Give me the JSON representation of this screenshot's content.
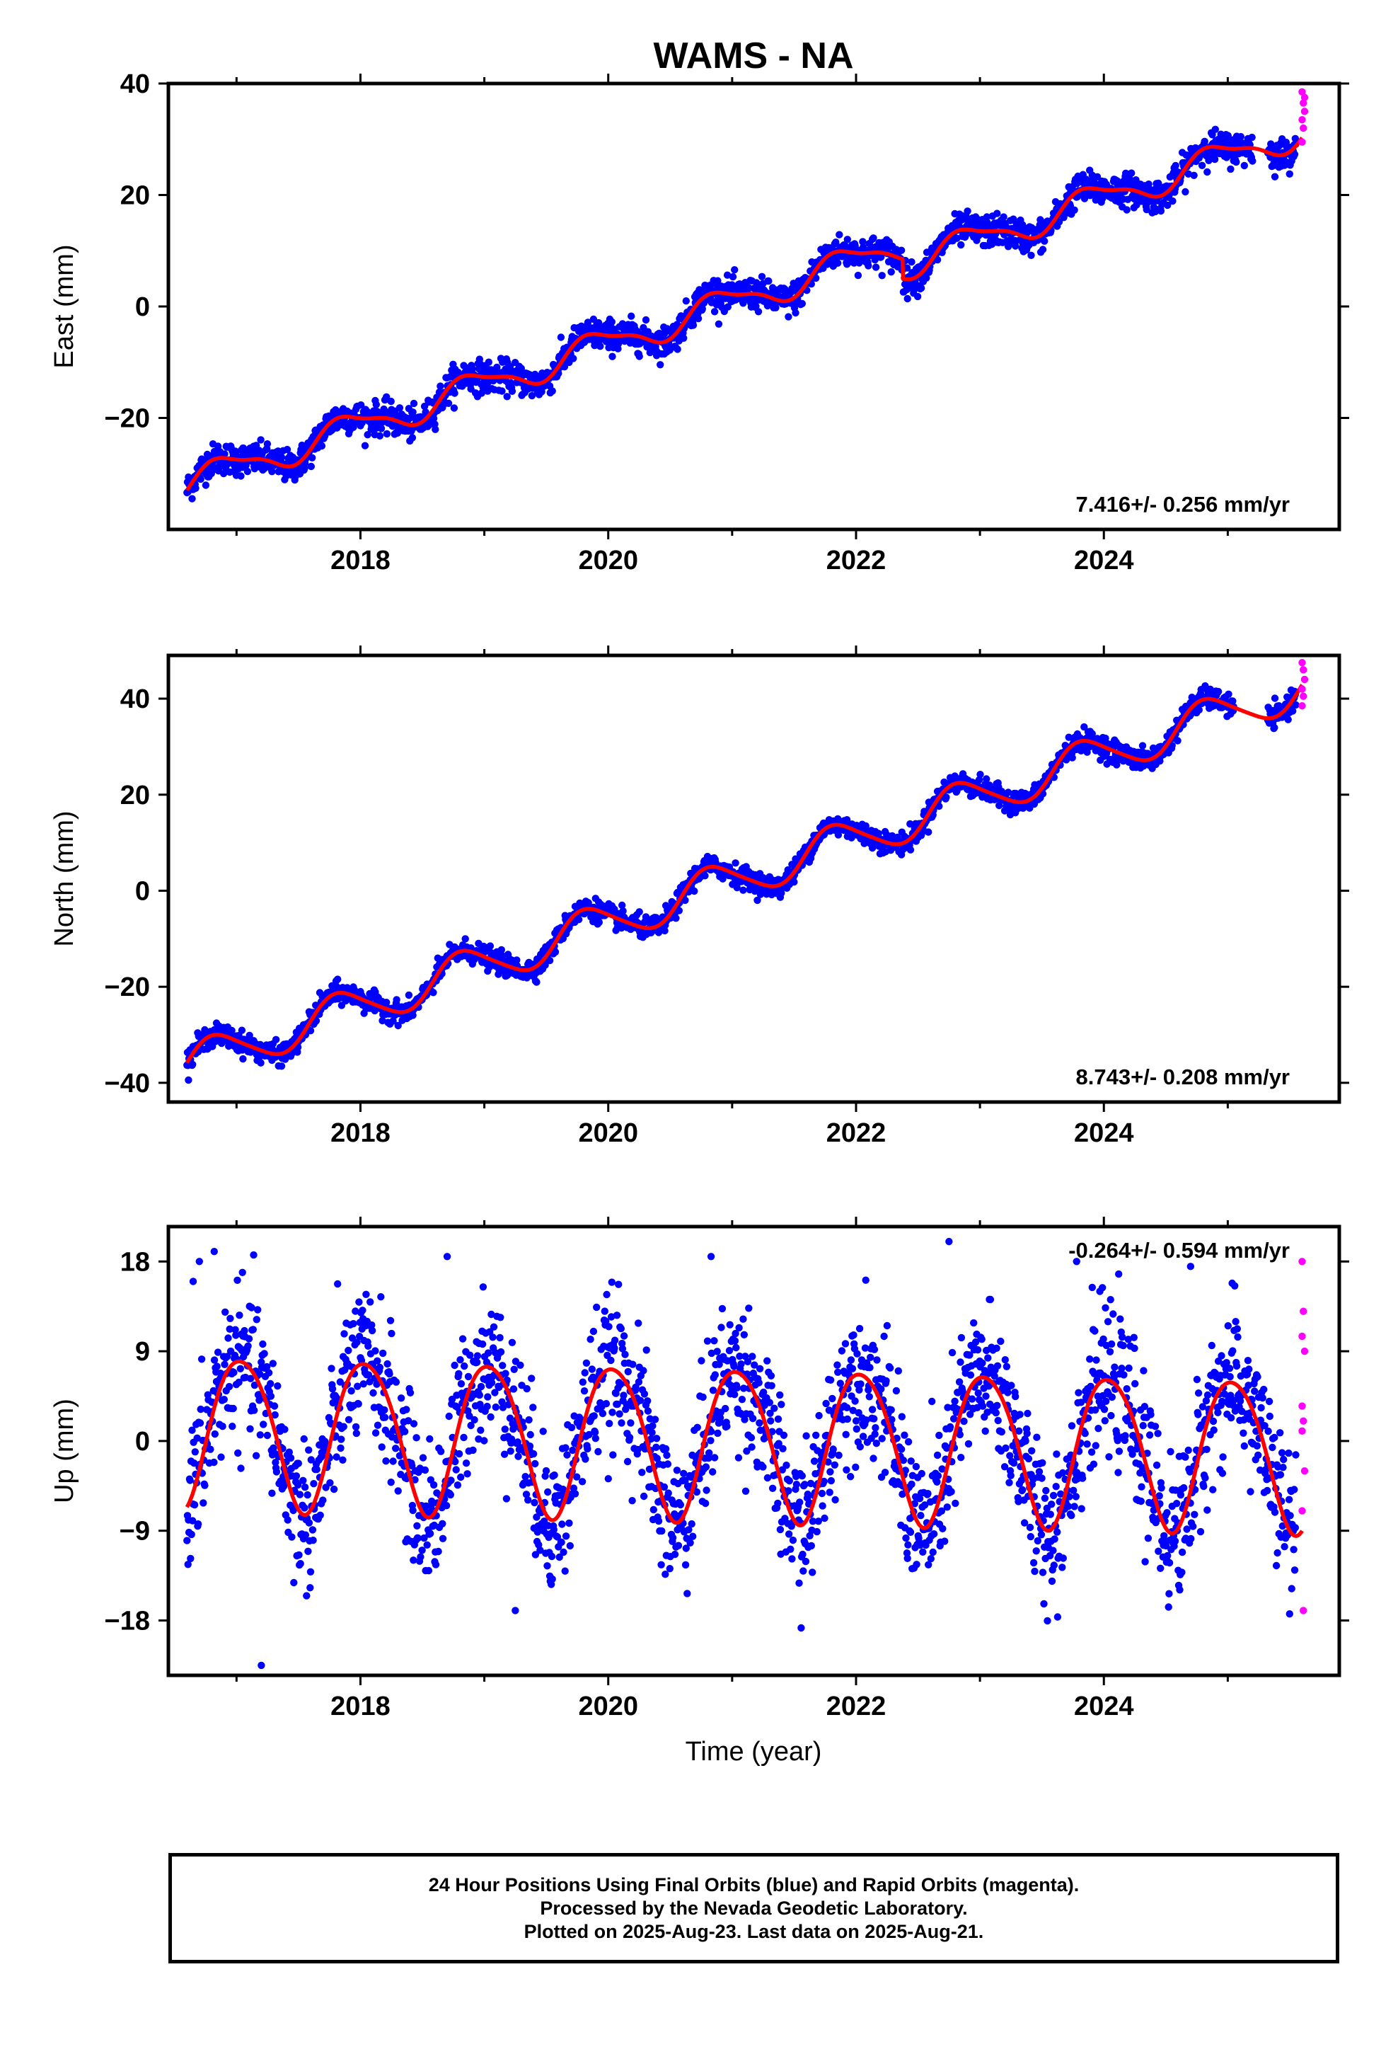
{
  "colors": {
    "final_orbits": "#0000ff",
    "rapid_orbits": "#ff00ff",
    "model_fit": "#ff0000",
    "axis": "#000000"
  },
  "chart_data": [
    {
      "type": "scatter",
      "title": "WAMS - NA",
      "xlabel": "",
      "ylabel": "East (mm)",
      "xlim": [
        2016.45,
        2025.9
      ],
      "ylim": [
        -40,
        40
      ],
      "x_ticks": [
        2018,
        2020,
        2022,
        2024
      ],
      "y_ticks": [
        -20,
        0,
        20,
        40
      ],
      "annotation": "7.416+/- 0.256 mm/yr",
      "model": {
        "start": 2016.6,
        "end": 2025.6,
        "y0": -31.8,
        "rate": 7.416,
        "annual_amp": 2.6,
        "annual_phase": -0.35,
        "semi_amp": 0.8,
        "offset_date": 2022.38,
        "offset": -3.5
      },
      "final_orbits": {
        "start": 2016.6,
        "end": 2025.55,
        "scatter_mm": 1.4,
        "gaps": [
          [
            2025.2,
            2025.32
          ]
        ]
      },
      "rapid_orbits": [
        [
          2025.6,
          38.5
        ],
        [
          2025.61,
          36.5
        ],
        [
          2025.62,
          35.0
        ],
        [
          2025.6,
          33.5
        ],
        [
          2025.61,
          32.0
        ],
        [
          2025.6,
          29.5
        ],
        [
          2025.62,
          37.5
        ]
      ],
      "grid": false,
      "legend": "none"
    },
    {
      "type": "scatter",
      "title": "",
      "xlabel": "",
      "ylabel": "North (mm)",
      "xlim": [
        2016.45,
        2025.9
      ],
      "ylim": [
        -44,
        49
      ],
      "x_ticks": [
        2018,
        2020,
        2022,
        2024
      ],
      "y_ticks": [
        -40,
        -20,
        0,
        20,
        40
      ],
      "annotation": "8.743+/- 0.208 mm/yr",
      "model": {
        "start": 2016.6,
        "end": 2025.6,
        "y0": -36.3,
        "rate": 8.743,
        "annual_amp": 4.2,
        "annual_phase": 0.1,
        "semi_amp": 0.6,
        "offset_date": null,
        "offset": 0
      },
      "final_orbits": {
        "start": 2016.6,
        "end": 2025.55,
        "scatter_mm": 1.1,
        "gaps": [
          [
            2025.05,
            2025.32
          ]
        ]
      },
      "rapid_orbits": [
        [
          2025.6,
          47.5
        ],
        [
          2025.61,
          46.0
        ],
        [
          2025.62,
          44.0
        ],
        [
          2025.6,
          42.0
        ],
        [
          2025.61,
          40.5
        ],
        [
          2025.6,
          38.5
        ]
      ],
      "grid": false,
      "legend": "none"
    },
    {
      "type": "scatter",
      "title": "",
      "xlabel": "Time (year)",
      "ylabel": "Up (mm)",
      "xlim": [
        2016.45,
        2025.9
      ],
      "ylim": [
        -23.5,
        21.5
      ],
      "x_ticks": [
        2018,
        2020,
        2022,
        2024
      ],
      "y_ticks": [
        -18,
        -9,
        0,
        9,
        18
      ],
      "y_tick_labels": [
        "−18",
        "−9",
        "0",
        "9",
        "18"
      ],
      "annotation": "-0.264+/- 0.594 mm/yr",
      "model": {
        "start": 2016.6,
        "end": 2025.6,
        "y0": 1.2,
        "rate": -0.264,
        "annual_amp": 7.6,
        "annual_phase": -1.2,
        "semi_amp": 0.8,
        "offset_date": null,
        "offset": 0
      },
      "final_orbits": {
        "start": 2016.6,
        "end": 2025.55,
        "scatter_mm": 3.6,
        "gaps": []
      },
      "rapid_orbits": [
        [
          2025.6,
          18.0
        ],
        [
          2025.61,
          13.0
        ],
        [
          2025.6,
          10.5
        ],
        [
          2025.62,
          9.0
        ],
        [
          2025.6,
          3.5
        ],
        [
          2025.61,
          2.0
        ],
        [
          2025.6,
          1.0
        ],
        [
          2025.62,
          -3.0
        ],
        [
          2025.6,
          -7.0
        ],
        [
          2025.61,
          -17.0
        ]
      ],
      "extra_points": [
        [
          2016.65,
          16.0
        ],
        [
          2016.7,
          18.0
        ],
        [
          2016.82,
          19.0
        ],
        [
          2017.2,
          -22.5
        ],
        [
          2018.7,
          18.5
        ],
        [
          2019.25,
          -17.0
        ],
        [
          2020.83,
          18.5
        ],
        [
          2022.75,
          20.0
        ],
        [
          2023.78,
          18.0
        ],
        [
          2024.7,
          17.5
        ]
      ],
      "grid": false,
      "legend": "none"
    }
  ],
  "x_tick_labels": [
    "2018",
    "2020",
    "2022",
    "2024"
  ],
  "footer": {
    "line1": "24 Hour Positions Using Final Orbits (blue) and Rapid Orbits (magenta).",
    "line2": "Processed by the Nevada Geodetic Laboratory.",
    "line3": "Plotted on 2025-Aug-23. Last data on 2025-Aug-21."
  }
}
